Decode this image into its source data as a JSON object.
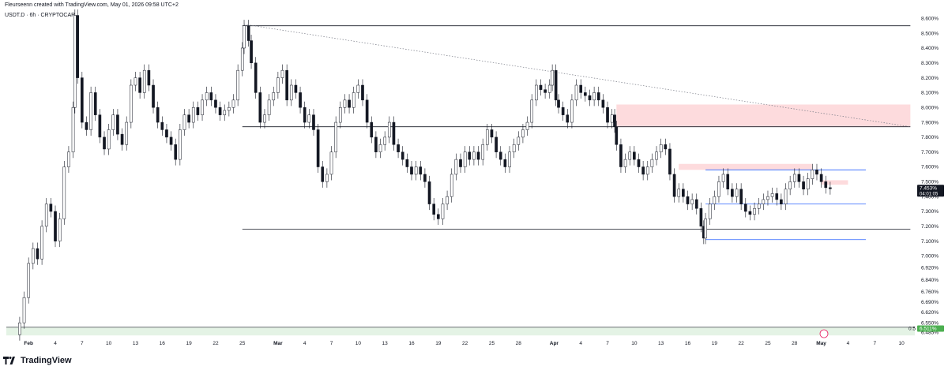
{
  "header": {
    "credit": "Fleurseenn created with TradingView.com, May 01, 2026 09:58 UTC+2",
    "symbol": "USDT.D · 6h · CRYPTOCAP"
  },
  "brand": {
    "name": "TradingView",
    "icon": "tradingview-logo-icon"
  },
  "colors": {
    "candle": "#131722",
    "up": "#ffffff",
    "zone_red": "rgba(242,54,69,0.18)",
    "zone_green": "rgba(76,175,80,0.15)",
    "level_line": "#131722",
    "blue_line": "#2962ff",
    "price_tag_bg": "#131722"
  },
  "chart_data": {
    "type": "candlestick",
    "title": "",
    "xlabel": "",
    "ylabel": "",
    "ylim": [
      6.45,
      8.66
    ],
    "grid": false,
    "y_ticks": [
      "8.600%",
      "8.500%",
      "8.400%",
      "8.300%",
      "8.200%",
      "8.100%",
      "8.000%",
      "7.900%",
      "7.800%",
      "7.700%",
      "7.600%",
      "7.500%",
      "7.400%",
      "7.300%",
      "7.200%",
      "7.100%",
      "7.000%",
      "6.920%",
      "6.840%",
      "6.760%",
      "6.690%",
      "6.620%",
      "6.550%",
      "6.485%"
    ],
    "y_tick_values": [
      8.6,
      8.5,
      8.4,
      8.3,
      8.2,
      8.1,
      8.0,
      7.9,
      7.8,
      7.7,
      7.6,
      7.5,
      7.4,
      7.3,
      7.2,
      7.1,
      7.0,
      6.92,
      6.84,
      6.76,
      6.69,
      6.62,
      6.55,
      6.485
    ],
    "x_ticks": [
      {
        "label": "Feb",
        "day": 0
      },
      {
        "label": "4",
        "day": 3
      },
      {
        "label": "7",
        "day": 6
      },
      {
        "label": "10",
        "day": 9
      },
      {
        "label": "13",
        "day": 12
      },
      {
        "label": "16",
        "day": 15
      },
      {
        "label": "19",
        "day": 18
      },
      {
        "label": "22",
        "day": 21
      },
      {
        "label": "25",
        "day": 24
      },
      {
        "label": "Mar",
        "day": 28
      },
      {
        "label": "4",
        "day": 31
      },
      {
        "label": "7",
        "day": 34
      },
      {
        "label": "10",
        "day": 37
      },
      {
        "label": "13",
        "day": 40
      },
      {
        "label": "16",
        "day": 43
      },
      {
        "label": "19",
        "day": 46
      },
      {
        "label": "22",
        "day": 49
      },
      {
        "label": "25",
        "day": 52
      },
      {
        "label": "28",
        "day": 55
      },
      {
        "label": "Apr",
        "day": 59
      },
      {
        "label": "4",
        "day": 62
      },
      {
        "label": "7",
        "day": 65
      },
      {
        "label": "10",
        "day": 68
      },
      {
        "label": "13",
        "day": 71
      },
      {
        "label": "16",
        "day": 74
      },
      {
        "label": "19",
        "day": 77
      },
      {
        "label": "22",
        "day": 80
      },
      {
        "label": "25",
        "day": 83
      },
      {
        "label": "28",
        "day": 86
      },
      {
        "label": "May",
        "day": 89
      },
      {
        "label": "4",
        "day": 92
      },
      {
        "label": "7",
        "day": 95
      },
      {
        "label": "10",
        "day": 98
      }
    ],
    "x_range_days": [
      -2.5,
      99.5
    ],
    "close_series": [
      [
        -1.5,
        6.47
      ],
      [
        -1,
        6.55
      ],
      [
        -0.5,
        6.72
      ],
      [
        0,
        6.95
      ],
      [
        0.5,
        7.05
      ],
      [
        1,
        6.98
      ],
      [
        1.5,
        7.2
      ],
      [
        2,
        7.35
      ],
      [
        2.5,
        7.3
      ],
      [
        3,
        7.1
      ],
      [
        3.5,
        7.25
      ],
      [
        4,
        7.6
      ],
      [
        4.5,
        7.7
      ],
      [
        5,
        8.0
      ],
      [
        5.2,
        8.62
      ],
      [
        5.5,
        8.2
      ],
      [
        6,
        7.9
      ],
      [
        6.5,
        7.85
      ],
      [
        7,
        8.1
      ],
      [
        7.5,
        7.95
      ],
      [
        8,
        7.8
      ],
      [
        8.5,
        7.72
      ],
      [
        9,
        7.85
      ],
      [
        9.5,
        7.95
      ],
      [
        10,
        7.82
      ],
      [
        10.5,
        7.75
      ],
      [
        11,
        7.9
      ],
      [
        11.5,
        8.15
      ],
      [
        12,
        8.2
      ],
      [
        12.5,
        8.1
      ],
      [
        13,
        8.25
      ],
      [
        13.5,
        8.15
      ],
      [
        14,
        8.0
      ],
      [
        14.5,
        7.9
      ],
      [
        15,
        7.85
      ],
      [
        15.5,
        7.8
      ],
      [
        16,
        7.75
      ],
      [
        16.5,
        7.65
      ],
      [
        17,
        7.85
      ],
      [
        17.5,
        7.95
      ],
      [
        18,
        7.9
      ],
      [
        18.5,
        8.0
      ],
      [
        19,
        7.95
      ],
      [
        19.5,
        8.05
      ],
      [
        20,
        8.1
      ],
      [
        20.5,
        8.05
      ],
      [
        21,
        8.0
      ],
      [
        21.5,
        7.95
      ],
      [
        22,
        7.98
      ],
      [
        22.5,
        8.0
      ],
      [
        23,
        8.05
      ],
      [
        23.5,
        8.25
      ],
      [
        24,
        8.4
      ],
      [
        24.2,
        8.55
      ],
      [
        24.7,
        8.45
      ],
      [
        25,
        8.3
      ],
      [
        25.5,
        8.1
      ],
      [
        26,
        7.9
      ],
      [
        26.5,
        7.95
      ],
      [
        27,
        8.05
      ],
      [
        27.5,
        8.1
      ],
      [
        28,
        8.2
      ],
      [
        28.5,
        8.25
      ],
      [
        29,
        8.05
      ],
      [
        29.5,
        8.15
      ],
      [
        30,
        8.1
      ],
      [
        30.5,
        8.0
      ],
      [
        31,
        7.9
      ],
      [
        31.5,
        7.95
      ],
      [
        32,
        7.85
      ],
      [
        32.5,
        7.6
      ],
      [
        33,
        7.5
      ],
      [
        33.5,
        7.55
      ],
      [
        34,
        7.7
      ],
      [
        34.5,
        7.9
      ],
      [
        35,
        8.0
      ],
      [
        35.5,
        8.05
      ],
      [
        36,
        8.0
      ],
      [
        36.5,
        8.1
      ],
      [
        37,
        8.15
      ],
      [
        37.5,
        8.05
      ],
      [
        38,
        7.9
      ],
      [
        38.5,
        7.8
      ],
      [
        39,
        7.7
      ],
      [
        39.5,
        7.75
      ],
      [
        40,
        7.8
      ],
      [
        40.5,
        7.9
      ],
      [
        41,
        7.75
      ],
      [
        41.5,
        7.7
      ],
      [
        42,
        7.65
      ],
      [
        42.5,
        7.6
      ],
      [
        43,
        7.55
      ],
      [
        43.5,
        7.6
      ],
      [
        44,
        7.55
      ],
      [
        44.5,
        7.5
      ],
      [
        45,
        7.35
      ],
      [
        45.5,
        7.28
      ],
      [
        46,
        7.25
      ],
      [
        46.5,
        7.35
      ],
      [
        47,
        7.4
      ],
      [
        47.5,
        7.55
      ],
      [
        48,
        7.65
      ],
      [
        48.5,
        7.6
      ],
      [
        49,
        7.7
      ],
      [
        49.5,
        7.65
      ],
      [
        50,
        7.7
      ],
      [
        50.5,
        7.65
      ],
      [
        51,
        7.75
      ],
      [
        51.5,
        7.85
      ],
      [
        52,
        7.8
      ],
      [
        52.5,
        7.7
      ],
      [
        53,
        7.65
      ],
      [
        53.5,
        7.6
      ],
      [
        54,
        7.7
      ],
      [
        54.5,
        7.75
      ],
      [
        55,
        7.8
      ],
      [
        55.5,
        7.85
      ],
      [
        56,
        7.9
      ],
      [
        56.5,
        8.05
      ],
      [
        57,
        8.15
      ],
      [
        57.5,
        8.12
      ],
      [
        58,
        8.1
      ],
      [
        58.5,
        8.15
      ],
      [
        58.8,
        8.25
      ],
      [
        59.2,
        8.05
      ],
      [
        59.5,
        8.0
      ],
      [
        60,
        7.95
      ],
      [
        60.5,
        7.9
      ],
      [
        61,
        8.05
      ],
      [
        61.5,
        8.15
      ],
      [
        62,
        8.1
      ],
      [
        62.5,
        8.08
      ],
      [
        63,
        8.05
      ],
      [
        63.5,
        8.1
      ],
      [
        64,
        8.05
      ],
      [
        64.5,
        8.0
      ],
      [
        65,
        7.9
      ],
      [
        65.5,
        7.95
      ],
      [
        65.8,
        7.87
      ],
      [
        66,
        7.75
      ],
      [
        66.5,
        7.6
      ],
      [
        67,
        7.65
      ],
      [
        67.5,
        7.7
      ],
      [
        68,
        7.65
      ],
      [
        68.5,
        7.6
      ],
      [
        69,
        7.55
      ],
      [
        69.5,
        7.6
      ],
      [
        70,
        7.65
      ],
      [
        70.5,
        7.7
      ],
      [
        71,
        7.75
      ],
      [
        71.5,
        7.72
      ],
      [
        72,
        7.55
      ],
      [
        72.5,
        7.4
      ],
      [
        73,
        7.45
      ],
      [
        73.5,
        7.4
      ],
      [
        74,
        7.35
      ],
      [
        74.5,
        7.38
      ],
      [
        75,
        7.32
      ],
      [
        75.5,
        7.2
      ],
      [
        75.8,
        7.12
      ],
      [
        76,
        7.25
      ],
      [
        76.5,
        7.35
      ],
      [
        77,
        7.4
      ],
      [
        77.5,
        7.5
      ],
      [
        78,
        7.55
      ],
      [
        78.5,
        7.45
      ],
      [
        79,
        7.4
      ],
      [
        79.5,
        7.45
      ],
      [
        80,
        7.35
      ],
      [
        80.5,
        7.3
      ],
      [
        81,
        7.28
      ],
      [
        81.5,
        7.32
      ],
      [
        82,
        7.35
      ],
      [
        82.5,
        7.38
      ],
      [
        83,
        7.4
      ],
      [
        83.5,
        7.42
      ],
      [
        84,
        7.38
      ],
      [
        84.5,
        7.35
      ],
      [
        85,
        7.45
      ],
      [
        85.5,
        7.5
      ],
      [
        86,
        7.55
      ],
      [
        86.5,
        7.5
      ],
      [
        87,
        7.45
      ],
      [
        87.5,
        7.52
      ],
      [
        88,
        7.58
      ],
      [
        88.5,
        7.55
      ],
      [
        89,
        7.5
      ],
      [
        89.5,
        7.46
      ],
      [
        90,
        7.453
      ]
    ],
    "horizontal_levels": [
      {
        "price": 8.55,
        "start_day": 24,
        "end_day": 99,
        "style": "solid",
        "color": "#131722"
      },
      {
        "price": 7.87,
        "start_day": 24,
        "end_day": 99,
        "style": "solid",
        "color": "#131722"
      },
      {
        "price": 7.18,
        "start_day": 24,
        "end_day": 99,
        "style": "solid",
        "color": "#131722"
      },
      {
        "price": 7.58,
        "start_day": 76,
        "end_day": 94,
        "style": "solid",
        "color": "#2962ff"
      },
      {
        "price": 7.35,
        "start_day": 76,
        "end_day": 94,
        "style": "solid",
        "color": "#2962ff"
      },
      {
        "price": 7.11,
        "start_day": 76,
        "end_day": 94,
        "style": "solid",
        "color": "#2962ff"
      }
    ],
    "trendline": {
      "from": [
        24.2,
        8.56
      ],
      "to": [
        99,
        7.87
      ],
      "style": "dotted"
    },
    "zones": [
      {
        "kind": "supply",
        "top": 8.02,
        "bottom": 7.87,
        "start_day": 66,
        "end_day": 99
      },
      {
        "kind": "supply",
        "top": 7.62,
        "bottom": 7.58,
        "start_day": 73,
        "end_day": 88
      },
      {
        "kind": "supply",
        "top": 7.51,
        "bottom": 7.48,
        "start_day": 89,
        "end_day": 92
      },
      {
        "kind": "demand",
        "top": 6.52,
        "bottom": 6.465,
        "start_day": -2.5,
        "end_day": 99.5
      }
    ],
    "last_price": "7.453%",
    "countdown": "04:01:05",
    "level_label": "0.5",
    "level_price": "6.511%",
    "level_value": 6.511
  }
}
